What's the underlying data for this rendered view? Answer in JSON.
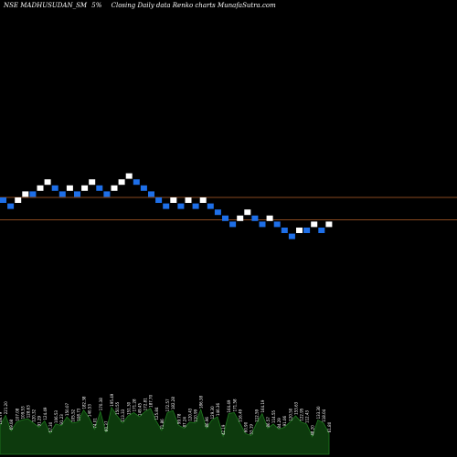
{
  "header": {
    "symbol": "NSE MADHUSUDAN_SM",
    "box_pct": "5%",
    "description": "Closing Daily data  Renko  charts MunafaSutra.com"
  },
  "colors": {
    "background": "#000000",
    "up_brick": "#ffffff",
    "down_brick": "#1e6fe8",
    "reference_line": "#b4612a",
    "volume_fill": "#0d3a0d",
    "volume_edge": "#1f7a1f",
    "text": "#ffffff"
  },
  "chart_data": {
    "type": "renko",
    "title": "NSE MADHUSUDAN_SM 5% Closing Daily data Renko charts MunafaSutra.com",
    "reference_lines": [
      1,
      4
    ],
    "bricks": [
      {
        "dir": "down",
        "level": 0
      },
      {
        "dir": "down",
        "level": -1
      },
      {
        "dir": "up",
        "level": 0
      },
      {
        "dir": "up",
        "level": 1
      },
      {
        "dir": "down",
        "level": 1
      },
      {
        "dir": "up",
        "level": 2
      },
      {
        "dir": "up",
        "level": 3
      },
      {
        "dir": "down",
        "level": 2
      },
      {
        "dir": "down",
        "level": 1
      },
      {
        "dir": "up",
        "level": 2
      },
      {
        "dir": "down",
        "level": 1
      },
      {
        "dir": "up",
        "level": 2
      },
      {
        "dir": "up",
        "level": 3
      },
      {
        "dir": "down",
        "level": 2
      },
      {
        "dir": "down",
        "level": 1
      },
      {
        "dir": "up",
        "level": 2
      },
      {
        "dir": "up",
        "level": 3
      },
      {
        "dir": "up",
        "level": 4
      },
      {
        "dir": "down",
        "level": 3
      },
      {
        "dir": "down",
        "level": 2
      },
      {
        "dir": "down",
        "level": 1
      },
      {
        "dir": "down",
        "level": 0
      },
      {
        "dir": "down",
        "level": -1
      },
      {
        "dir": "up",
        "level": 0
      },
      {
        "dir": "down",
        "level": -1
      },
      {
        "dir": "up",
        "level": 0
      },
      {
        "dir": "down",
        "level": -1
      },
      {
        "dir": "up",
        "level": 0
      },
      {
        "dir": "down",
        "level": -1
      },
      {
        "dir": "down",
        "level": -2
      },
      {
        "dir": "down",
        "level": -3
      },
      {
        "dir": "down",
        "level": -4
      },
      {
        "dir": "up",
        "level": -3
      },
      {
        "dir": "up",
        "level": -2
      },
      {
        "dir": "down",
        "level": -3
      },
      {
        "dir": "down",
        "level": -4
      },
      {
        "dir": "up",
        "level": -3
      },
      {
        "dir": "down",
        "level": -4
      },
      {
        "dir": "down",
        "level": -5
      },
      {
        "dir": "down",
        "level": -6
      },
      {
        "dir": "up",
        "level": -5
      },
      {
        "dir": "down",
        "level": -5
      },
      {
        "dir": "up",
        "level": -4
      },
      {
        "dir": "down",
        "level": -5
      },
      {
        "dir": "up",
        "level": -4
      }
    ],
    "volume_labels": [
      "108.79",
      "221.20",
      "69.08",
      "107.08",
      "109.53",
      "128.63",
      "120.32",
      "91.29",
      "124.49",
      "57.30",
      "106.53",
      "91.23",
      "150.07",
      "105.52",
      "108.73",
      "182.38",
      "140.53",
      "74.01",
      "170.38",
      "60.37",
      "195.49",
      "150.55",
      "113.33",
      "151.30",
      "171.28",
      "149.45",
      "172.81",
      "187.70",
      "125.84",
      "71.86",
      "172.57",
      "182.28",
      "99.78",
      "87.24",
      "120.43",
      "110.99",
      "186.38",
      "86.96",
      "129.30",
      "146.36",
      "42.19",
      "164.49",
      "171.58",
      "116.49",
      "60.90",
      "53.19",
      "112.59",
      "164.19",
      "86.57",
      "114.55",
      "84.29",
      "91.06",
      "120.50",
      "153.63",
      "122.95",
      "112.43",
      "48.20",
      "133.30",
      "118.04",
      "61.80"
    ],
    "volume_profile": [
      0.55,
      0.75,
      0.45,
      0.62,
      0.66,
      0.68,
      0.6,
      0.52,
      0.64,
      0.4,
      0.58,
      0.55,
      0.72,
      0.6,
      0.62,
      0.85,
      0.7,
      0.48,
      0.82,
      0.42,
      0.9,
      0.74,
      0.6,
      0.74,
      0.8,
      0.72,
      0.82,
      0.88,
      0.64,
      0.46,
      0.8,
      0.84,
      0.56,
      0.5,
      0.62,
      0.6,
      0.86,
      0.5,
      0.66,
      0.72,
      0.35,
      0.78,
      0.8,
      0.6,
      0.4,
      0.36,
      0.6,
      0.78,
      0.5,
      0.58,
      0.48,
      0.52,
      0.62,
      0.74,
      0.62,
      0.58,
      0.34,
      0.66,
      0.6,
      0.4
    ]
  }
}
